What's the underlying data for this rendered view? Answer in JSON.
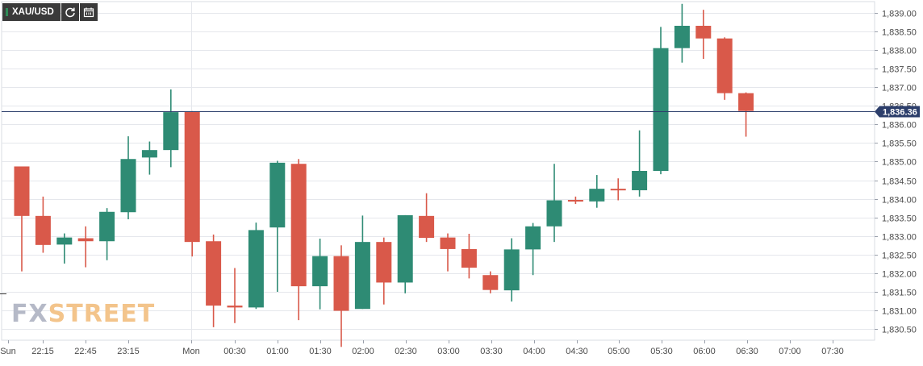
{
  "toolbar": {
    "symbol": "XAU/USD",
    "buttons": [
      {
        "name": "refresh-icon"
      },
      {
        "name": "calendar-icon"
      }
    ]
  },
  "watermark": {
    "fx": "FX",
    "street": "STREET"
  },
  "colors": {
    "up": "#2e8b74",
    "down": "#d9594a",
    "grid": "#e5e7ec",
    "axis_text": "#4a4a4a",
    "price_line": "#2c3e6b",
    "price_tag_bg": "#2c3e6b",
    "price_tag_text": "#ffffff"
  },
  "chart_data": {
    "type": "candlestick",
    "ylim": [
      1830.2,
      1839.3
    ],
    "grid": true,
    "y_ticks": [
      "1,830.50",
      "1,831.00",
      "1,831.50",
      "1,832.00",
      "1,832.50",
      "1,833.00",
      "1,833.50",
      "1,834.00",
      "1,834.50",
      "1,835.00",
      "1,835.50",
      "1,836.00",
      "1,836.50",
      "1,837.00",
      "1,837.50",
      "1,838.00",
      "1,838.50",
      "1,839.00"
    ],
    "x_ticks": [
      "Sun",
      "22:15",
      "22:45",
      "23:15",
      "Mon",
      "00:30",
      "01:00",
      "01:30",
      "02:00",
      "02:30",
      "03:00",
      "03:30",
      "04:00",
      "04:30",
      "05:00",
      "05:30",
      "06:00",
      "06:30",
      "07:00",
      "07:30"
    ],
    "current_price": 1836.36,
    "current_price_label": "1,836.36",
    "candles": [
      {
        "o": 1834.87,
        "h": 1834.87,
        "l": 1832.05,
        "c": 1833.54
      },
      {
        "o": 1833.54,
        "h": 1834.06,
        "l": 1832.55,
        "c": 1832.76
      },
      {
        "o": 1832.77,
        "h": 1833.07,
        "l": 1832.26,
        "c": 1832.96
      },
      {
        "o": 1832.94,
        "h": 1833.26,
        "l": 1832.16,
        "c": 1832.86
      },
      {
        "o": 1832.86,
        "h": 1833.75,
        "l": 1832.35,
        "c": 1833.65
      },
      {
        "o": 1833.64,
        "h": 1835.68,
        "l": 1833.45,
        "c": 1835.07
      },
      {
        "o": 1835.11,
        "h": 1835.54,
        "l": 1834.65,
        "c": 1835.31
      },
      {
        "o": 1835.31,
        "h": 1836.94,
        "l": 1834.85,
        "c": 1836.33
      },
      {
        "o": 1836.35,
        "h": 1836.36,
        "l": 1832.45,
        "c": 1832.84
      },
      {
        "o": 1832.86,
        "h": 1833.04,
        "l": 1830.55,
        "c": 1831.13
      },
      {
        "o": 1831.13,
        "h": 1832.14,
        "l": 1830.66,
        "c": 1831.08
      },
      {
        "o": 1831.08,
        "h": 1833.36,
        "l": 1831.04,
        "c": 1833.16
      },
      {
        "o": 1833.23,
        "h": 1835.02,
        "l": 1831.5,
        "c": 1834.97
      },
      {
        "o": 1834.94,
        "h": 1835.07,
        "l": 1830.74,
        "c": 1831.65
      },
      {
        "o": 1831.65,
        "h": 1832.93,
        "l": 1831.03,
        "c": 1832.46
      },
      {
        "o": 1832.46,
        "h": 1832.75,
        "l": 1830.02,
        "c": 1830.99
      },
      {
        "o": 1831.04,
        "h": 1833.55,
        "l": 1831.04,
        "c": 1832.84
      },
      {
        "o": 1832.84,
        "h": 1832.96,
        "l": 1831.16,
        "c": 1831.75
      },
      {
        "o": 1831.75,
        "h": 1833.56,
        "l": 1831.46,
        "c": 1833.56
      },
      {
        "o": 1833.54,
        "h": 1834.15,
        "l": 1832.84,
        "c": 1832.95
      },
      {
        "o": 1832.96,
        "h": 1833.07,
        "l": 1832.05,
        "c": 1832.65
      },
      {
        "o": 1832.65,
        "h": 1833.06,
        "l": 1831.86,
        "c": 1832.15
      },
      {
        "o": 1831.95,
        "h": 1832.05,
        "l": 1831.46,
        "c": 1831.55
      },
      {
        "o": 1831.54,
        "h": 1832.94,
        "l": 1831.24,
        "c": 1832.64
      },
      {
        "o": 1832.64,
        "h": 1833.35,
        "l": 1831.95,
        "c": 1833.26
      },
      {
        "o": 1833.26,
        "h": 1834.94,
        "l": 1832.84,
        "c": 1833.96
      },
      {
        "o": 1833.97,
        "h": 1834.06,
        "l": 1833.86,
        "c": 1833.93
      },
      {
        "o": 1833.93,
        "h": 1834.64,
        "l": 1833.76,
        "c": 1834.27
      },
      {
        "o": 1834.27,
        "h": 1834.55,
        "l": 1833.96,
        "c": 1834.24
      },
      {
        "o": 1834.23,
        "h": 1835.84,
        "l": 1834.06,
        "c": 1834.75
      },
      {
        "o": 1834.75,
        "h": 1838.62,
        "l": 1834.66,
        "c": 1838.05
      },
      {
        "o": 1838.05,
        "h": 1839.24,
        "l": 1837.66,
        "c": 1838.65
      },
      {
        "o": 1838.65,
        "h": 1839.08,
        "l": 1837.76,
        "c": 1838.31
      },
      {
        "o": 1838.31,
        "h": 1838.34,
        "l": 1836.66,
        "c": 1836.84
      },
      {
        "o": 1836.84,
        "h": 1836.86,
        "l": 1835.67,
        "c": 1836.36
      }
    ]
  }
}
